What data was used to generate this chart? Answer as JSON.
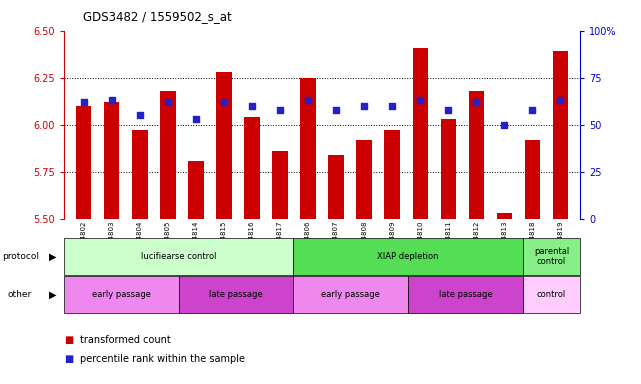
{
  "title": "GDS3482 / 1559502_s_at",
  "samples": [
    "GSM294802",
    "GSM294803",
    "GSM294804",
    "GSM294805",
    "GSM294814",
    "GSM294815",
    "GSM294816",
    "GSM294817",
    "GSM294806",
    "GSM294807",
    "GSM294808",
    "GSM294809",
    "GSM294810",
    "GSM294811",
    "GSM294812",
    "GSM294813",
    "GSM294818",
    "GSM294819"
  ],
  "red_values": [
    6.1,
    6.12,
    5.97,
    6.18,
    5.81,
    6.28,
    6.04,
    5.86,
    6.25,
    5.84,
    5.92,
    5.97,
    6.41,
    6.03,
    6.18,
    5.53,
    5.92,
    6.39
  ],
  "blue_values_pct": [
    62,
    63,
    55,
    62,
    53,
    62,
    60,
    58,
    63,
    58,
    60,
    60,
    63,
    58,
    62,
    50,
    58,
    63
  ],
  "ylim_left": [
    5.5,
    6.5
  ],
  "ylim_right": [
    0,
    100
  ],
  "yticks_left": [
    5.5,
    5.75,
    6.0,
    6.25,
    6.5
  ],
  "yticks_right": [
    0,
    25,
    50,
    75,
    100
  ],
  "hlines": [
    5.75,
    6.0,
    6.25
  ],
  "bar_color": "#cc0000",
  "dot_color": "#2222cc",
  "bar_bottom": 5.5,
  "protocol_groups": [
    {
      "label": "lucifiearse control",
      "start": 0,
      "end": 8,
      "color": "#ccffcc"
    },
    {
      "label": "XIAP depletion",
      "start": 8,
      "end": 16,
      "color": "#55dd55"
    },
    {
      "label": "parental\ncontrol",
      "start": 16,
      "end": 18,
      "color": "#88ee88"
    }
  ],
  "other_groups": [
    {
      "label": "early passage",
      "start": 0,
      "end": 4,
      "color": "#ee88ee"
    },
    {
      "label": "late passage",
      "start": 4,
      "end": 8,
      "color": "#cc44cc"
    },
    {
      "label": "early passage",
      "start": 8,
      "end": 12,
      "color": "#ee88ee"
    },
    {
      "label": "late passage",
      "start": 12,
      "end": 16,
      "color": "#cc44cc"
    },
    {
      "label": "control",
      "start": 16,
      "end": 18,
      "color": "#ffccff"
    }
  ],
  "legend_items": [
    {
      "label": "transformed count",
      "color": "#cc0000"
    },
    {
      "label": "percentile rank within the sample",
      "color": "#2222cc"
    }
  ],
  "bg_color": "#ffffff",
  "plot_bg_color": "#ffffff",
  "left_axis_color": "#cc0000",
  "right_axis_color": "#0000cc"
}
